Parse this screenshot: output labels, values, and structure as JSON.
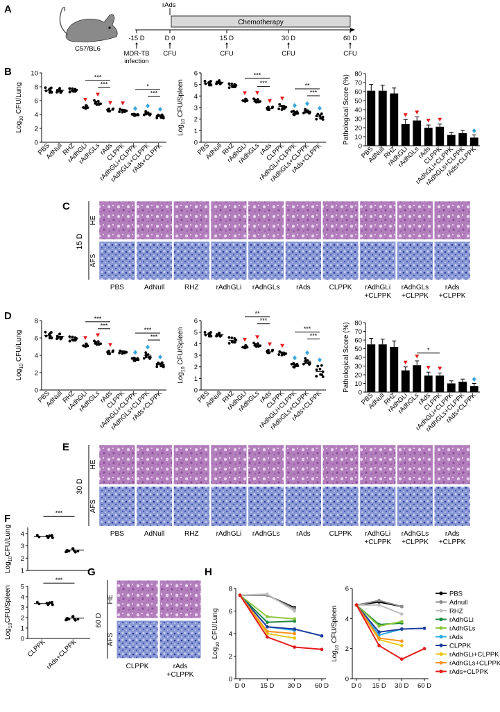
{
  "palette": {
    "red_marker": "#e41a1c",
    "blue_marker": "#3aa6dd",
    "he_base": "#b07ab8",
    "afs_base": "#7f8fd0",
    "bar": "#000000",
    "chemo_bar": "#d9d9d9"
  },
  "panel_a": {
    "letter": "A",
    "mouse_label": "C57/BL6",
    "rads_label": "rAds",
    "chemo_label": "Chemotherapy",
    "ticks": [
      "-15 D",
      "D 0",
      "15 D",
      "30 D",
      "60 D"
    ],
    "below": [
      "MDR-TB",
      "CFU",
      "CFU",
      "CFU",
      "CFU"
    ],
    "infection_label": "infection"
  },
  "groups": [
    "PBS",
    "AdNull",
    "RHZ",
    "rAdhGLi",
    "rAdhGLs",
    "rAds",
    "CLPPK",
    "rAdhGLi+CLPPK",
    "rAdhGLs+CLPPK",
    "rAds+CLPPK"
  ],
  "image_groups": [
    "PBS",
    "AdNull",
    "RHZ",
    "rAdhGLi",
    "rAdhGLs",
    "rAds",
    "CLPPK",
    "rAdhGLi",
    "rAdhGLs",
    "rAds"
  ],
  "image_groups_sub": [
    "",
    "",
    "",
    "",
    "",
    "",
    "",
    "+CLPPK",
    "+CLPPK",
    "+CLPPK"
  ],
  "panel_b": {
    "letter": "B"
  },
  "panel_c": {
    "letter": "C",
    "time": "15 D",
    "row1": "HE",
    "row2": "AFS"
  },
  "panel_d": {
    "letter": "D"
  },
  "panel_e": {
    "letter": "E",
    "time": "30 D",
    "row1": "HE",
    "row2": "AFS"
  },
  "panel_f": {
    "letter": "F",
    "groups": [
      "CLPPK",
      "rAds+CLPPK"
    ]
  },
  "panel_g": {
    "letter": "G",
    "time": "60 D",
    "row1": "HE",
    "row2": "AFS",
    "groups": [
      "CLPPK",
      "rAds"
    ],
    "groups_sub": [
      "",
      "+CLPPK"
    ]
  },
  "panel_h": {
    "letter": "H",
    "legend": [
      "PBS",
      "Adnull",
      "RHZ",
      "rAdhGLi",
      "rAdhGLs",
      "rAds",
      "CLPPK",
      "rAdhGLi+CLPPK",
      "rAdhGLs+CLPPK",
      "rAds+CLPPK"
    ],
    "legend_colors": [
      "#000000",
      "#8c8c8c",
      "#c0c0c0",
      "#1a8a3c",
      "#8cc63f",
      "#29abe2",
      "#1f3f9f",
      "#e8c617",
      "#f7941d",
      "#e21d1d"
    ]
  },
  "chart_data": [
    {
      "id": "b1",
      "type": "scatter",
      "panel": "B",
      "ylabel_main": "Log",
      "ylabel_sub": "10",
      "ylabel_rest": " CFU/Lung",
      "ylim": [
        0,
        10
      ],
      "yticks": [
        0,
        2,
        4,
        6,
        8,
        10
      ],
      "means": [
        7.5,
        7.5,
        7.5,
        5.0,
        5.5,
        4.6,
        4.6,
        4.0,
        4.2,
        3.7
      ],
      "spreads": [
        0.4,
        0.4,
        0.3,
        0.4,
        0.6,
        0.3,
        0.3,
        0.2,
        0.3,
        0.3
      ],
      "markers": [
        "",
        "",
        "",
        "red",
        "red",
        "red",
        "red",
        "blue",
        "blue",
        "blue"
      ],
      "sig": [
        {
          "from": 3,
          "to": 5,
          "label": "***"
        },
        {
          "from": 4,
          "to": 5,
          "label": "***"
        },
        {
          "from": 7,
          "to": 9,
          "label": "*"
        },
        {
          "from": 8,
          "to": 9,
          "label": "***"
        }
      ]
    },
    {
      "id": "b2",
      "type": "scatter",
      "panel": "B",
      "ylabel_main": "Log",
      "ylabel_sub": "10",
      "ylabel_rest": " CFU/Spleen",
      "ylim": [
        0,
        6
      ],
      "yticks": [
        0,
        1,
        2,
        3,
        4,
        5,
        6
      ],
      "means": [
        5.1,
        5.2,
        4.9,
        3.6,
        3.5,
        2.9,
        3.1,
        2.6,
        2.7,
        2.2
      ],
      "spreads": [
        0.2,
        0.2,
        0.2,
        0.2,
        0.3,
        0.2,
        0.3,
        0.3,
        0.2,
        0.3
      ],
      "markers": [
        "",
        "",
        "",
        "red",
        "red",
        "red",
        "red",
        "blue",
        "blue",
        "blue"
      ],
      "sig": [
        {
          "from": 3,
          "to": 5,
          "label": "***"
        },
        {
          "from": 4,
          "to": 5,
          "label": "***"
        },
        {
          "from": 7,
          "to": 9,
          "label": "**"
        },
        {
          "from": 8,
          "to": 9,
          "label": "***"
        }
      ]
    },
    {
      "id": "b3",
      "type": "bar",
      "panel": "B",
      "ylabel": "Pathological Score (%)",
      "ylim": [
        0,
        80
      ],
      "yticks": [
        0,
        10,
        20,
        30,
        40,
        50,
        60,
        70,
        80
      ],
      "values": [
        61,
        61,
        58,
        24,
        28,
        20,
        21,
        12,
        14,
        9
      ],
      "errors": [
        7,
        6,
        6,
        5,
        4,
        3,
        3,
        3,
        3,
        3
      ],
      "markers": [
        "",
        "",
        "",
        "red",
        "red",
        "red",
        "red",
        "",
        "",
        "blue"
      ]
    },
    {
      "id": "d1",
      "type": "scatter",
      "panel": "D",
      "ylabel_main": "Log",
      "ylabel_sub": "10",
      "ylabel_rest": " CFU/Lung",
      "ylim": [
        0,
        8
      ],
      "yticks": [
        0,
        2,
        4,
        6,
        8
      ],
      "means": [
        6.3,
        6.2,
        5.9,
        5.1,
        5.3,
        4.3,
        4.4,
        3.6,
        4.0,
        2.9
      ],
      "spreads": [
        0.4,
        0.4,
        0.3,
        0.3,
        0.4,
        0.3,
        0.2,
        0.3,
        0.4,
        0.3
      ],
      "markers": [
        "",
        "",
        "",
        "red",
        "red",
        "red",
        "",
        "blue",
        "blue",
        "blue"
      ],
      "sig": [
        {
          "from": 3,
          "to": 5,
          "label": "***"
        },
        {
          "from": 4,
          "to": 5,
          "label": "***"
        },
        {
          "from": 7,
          "to": 9,
          "label": "***"
        },
        {
          "from": 8,
          "to": 9,
          "label": "***"
        }
      ]
    },
    {
      "id": "d2",
      "type": "scatter",
      "panel": "D",
      "ylabel_main": "Log",
      "ylabel_sub": "10",
      "ylabel_rest": " CFU/Spleen",
      "ylim": [
        0,
        6
      ],
      "yticks": [
        0,
        1,
        2,
        3,
        4,
        5,
        6
      ],
      "means": [
        4.8,
        4.8,
        4.3,
        3.7,
        3.8,
        3.3,
        3.2,
        2.2,
        2.5,
        1.6
      ],
      "spreads": [
        0.2,
        0.2,
        0.3,
        0.2,
        0.3,
        0.2,
        0.2,
        0.3,
        0.3,
        0.6
      ],
      "markers": [
        "",
        "",
        "",
        "red",
        "red",
        "red",
        "red",
        "blue",
        "blue",
        "blue"
      ],
      "sig": [
        {
          "from": 3,
          "to": 5,
          "label": "**"
        },
        {
          "from": 4,
          "to": 5,
          "label": "***"
        },
        {
          "from": 7,
          "to": 9,
          "label": "***"
        },
        {
          "from": 8,
          "to": 9,
          "label": "***"
        }
      ]
    },
    {
      "id": "d3",
      "type": "bar",
      "panel": "D",
      "ylabel": "Pathological Score (%)",
      "ylim": [
        0,
        80
      ],
      "yticks": [
        0,
        10,
        20,
        30,
        40,
        50,
        60,
        70,
        80
      ],
      "values": [
        55,
        55,
        52,
        25,
        31,
        19,
        19,
        10,
        12,
        7
      ],
      "errors": [
        7,
        6,
        7,
        4,
        5,
        4,
        3,
        3,
        3,
        3
      ],
      "markers": [
        "",
        "",
        "",
        "red",
        "red",
        "red",
        "red",
        "",
        "",
        "blue"
      ],
      "sig": [
        {
          "from": 4,
          "to": 6,
          "label": "*"
        }
      ]
    },
    {
      "id": "f1",
      "type": "scatter",
      "panel": "F",
      "ylabel_main": "Log",
      "ylabel_sub": "10",
      "ylabel_rest": "CFU/Lung",
      "ylim": [
        1,
        4.5
      ],
      "yticks": [
        1,
        2,
        3,
        4
      ],
      "groups": [
        "",
        ""
      ],
      "means": [
        3.75,
        2.65
      ],
      "spreads": [
        0.12,
        0.2
      ],
      "sig": [
        {
          "from": 0,
          "to": 1,
          "label": "***"
        }
      ]
    },
    {
      "id": "f2",
      "type": "scatter",
      "panel": "F",
      "ylabel_main": "Log",
      "ylabel_sub": "10",
      "ylabel_rest": "CFU/Spleen",
      "ylim": [
        0,
        5
      ],
      "yticks": [
        0,
        1,
        2,
        3,
        4,
        5
      ],
      "groups": [
        "CLPPK",
        "rAds+CLPPK"
      ],
      "means": [
        3.35,
        1.95
      ],
      "spreads": [
        0.15,
        0.25
      ],
      "sig": [
        {
          "from": 0,
          "to": 1,
          "label": "***"
        }
      ]
    },
    {
      "id": "h1",
      "type": "line",
      "panel": "H",
      "ylabel_main": "Log",
      "ylabel_sub": "10",
      "ylabel_rest": " CFU/Lung",
      "x": [
        "D 0",
        "15 D",
        "30 D",
        "60 D"
      ],
      "ylim": [
        0,
        8
      ],
      "yticks": [
        0,
        2,
        4,
        6,
        8
      ],
      "series": [
        {
          "name": "PBS",
          "values": [
            7.4,
            7.4,
            6.3,
            null
          ]
        },
        {
          "name": "Adnull",
          "values": [
            7.4,
            7.4,
            6.2,
            null
          ]
        },
        {
          "name": "RHZ",
          "values": [
            7.4,
            7.5,
            6.0,
            null
          ]
        },
        {
          "name": "rAdhGLi",
          "values": [
            7.4,
            5.0,
            5.1,
            null
          ]
        },
        {
          "name": "rAdhGLs",
          "values": [
            7.4,
            5.5,
            5.3,
            null
          ]
        },
        {
          "name": "rAds",
          "values": [
            7.4,
            4.6,
            4.3,
            null
          ]
        },
        {
          "name": "CLPPK",
          "values": [
            7.4,
            4.6,
            4.4,
            3.8
          ]
        },
        {
          "name": "rAdhGLi+CLPPK",
          "values": [
            7.4,
            4.0,
            3.6,
            null
          ]
        },
        {
          "name": "rAdhGLs+CLPPK",
          "values": [
            7.4,
            4.2,
            4.0,
            null
          ]
        },
        {
          "name": "rAds+CLPPK",
          "values": [
            7.4,
            3.7,
            2.8,
            2.6
          ]
        }
      ]
    },
    {
      "id": "h2",
      "type": "line",
      "panel": "H",
      "ylabel_main": "Log",
      "ylabel_sub": "10",
      "ylabel_rest": " CFU/Spleen",
      "x": [
        "D 0",
        "15 D",
        "30 D",
        "60 D"
      ],
      "ylim": [
        0,
        6
      ],
      "yticks": [
        0,
        2,
        4,
        6
      ],
      "series": [
        {
          "name": "PBS",
          "values": [
            4.9,
            5.1,
            4.8,
            null
          ]
        },
        {
          "name": "Adnull",
          "values": [
            4.9,
            5.2,
            4.8,
            null
          ]
        },
        {
          "name": "RHZ",
          "values": [
            4.9,
            4.9,
            4.3,
            null
          ]
        },
        {
          "name": "rAdhGLi",
          "values": [
            4.9,
            3.6,
            3.7,
            null
          ]
        },
        {
          "name": "rAdhGLs",
          "values": [
            4.9,
            3.5,
            3.8,
            null
          ]
        },
        {
          "name": "rAds",
          "values": [
            4.9,
            2.9,
            3.3,
            null
          ]
        },
        {
          "name": "CLPPK",
          "values": [
            4.9,
            3.1,
            3.3,
            3.35
          ]
        },
        {
          "name": "rAdhGLi+CLPPK",
          "values": [
            4.9,
            2.6,
            2.2,
            null
          ]
        },
        {
          "name": "rAdhGLs+CLPPK",
          "values": [
            4.9,
            2.7,
            2.5,
            null
          ]
        },
        {
          "name": "rAds+CLPPK",
          "values": [
            4.9,
            2.2,
            1.3,
            2.0
          ]
        }
      ]
    }
  ]
}
